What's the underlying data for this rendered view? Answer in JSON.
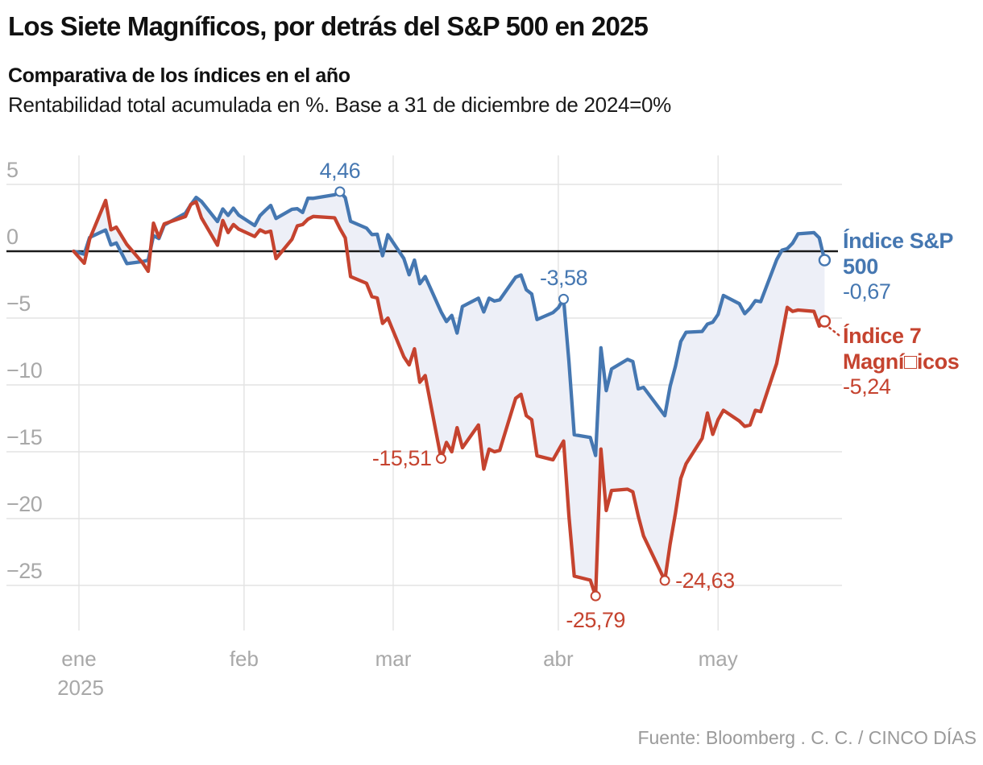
{
  "header": {
    "title": "Los Siete Magníficos, por detrás del S&P 500 en 2025",
    "subtitle": "Comparativa de los índices en el año",
    "description": "Rentabilidad total acumulada en %. Base a 31 de diciembre de 2024=0%"
  },
  "footer": {
    "source": "Fuente: Bloomberg . C. C. / CINCO DÍAS"
  },
  "chart_data": {
    "type": "line",
    "title": "Los Siete Magníficos, por detrás del S&P 500 en 2025",
    "subtitle": "Comparativa de los índices en el año",
    "note": "Rentabilidad total acumulada en %. Base a 31 de diciembre de 2024=0%",
    "x_unit": "day_of_year_2025 (0 = 31 dic 2024)",
    "xlim": [
      0,
      141
    ],
    "ylim": [
      -28.5,
      7.2
    ],
    "grid": true,
    "legend_position": "right-end",
    "colors": {
      "sp500_blue": "#4577b1",
      "mag7_red": "#c5432f",
      "fill_between": "#edeff7",
      "grid": "#e3e3e3",
      "zero_line": "#1a1a1a",
      "axis_text": "#a8a8a8",
      "footer_text": "#9a9a9a"
    },
    "x_ticks": [
      {
        "label": "ene",
        "sublabel": "2025",
        "doy": 1
      },
      {
        "label": "feb",
        "doy": 32
      },
      {
        "label": "mar",
        "doy": 60
      },
      {
        "label": "abr",
        "doy": 91
      },
      {
        "label": "may",
        "doy": 121
      }
    ],
    "y_ticks": [
      {
        "label": "5",
        "value": 5
      },
      {
        "label": "0",
        "value": 0
      },
      {
        "label": "−5",
        "value": -5
      },
      {
        "label": "−10",
        "value": -10
      },
      {
        "label": "−15",
        "value": -15
      },
      {
        "label": "−20",
        "value": -20
      },
      {
        "label": "−25",
        "value": -25
      }
    ],
    "series": [
      {
        "id": "sp500",
        "name": "Índice S&P 500",
        "color": "#4577b1",
        "end_value_label": "-0,67",
        "points": [
          [
            0,
            0
          ],
          [
            2,
            -0.22
          ],
          [
            3,
            1.03
          ],
          [
            6,
            1.59
          ],
          [
            7,
            0.47
          ],
          [
            8,
            0.62
          ],
          [
            10,
            -0.93
          ],
          [
            13,
            -0.77
          ],
          [
            14,
            -0.66
          ],
          [
            15,
            1.16
          ],
          [
            16,
            0.95
          ],
          [
            17,
            1.96
          ],
          [
            21,
            2.85
          ],
          [
            22,
            3.48
          ],
          [
            23,
            4.03
          ],
          [
            24,
            3.73
          ],
          [
            27,
            2.22
          ],
          [
            28,
            3.16
          ],
          [
            29,
            2.68
          ],
          [
            30,
            3.22
          ],
          [
            31,
            2.7
          ],
          [
            34,
            1.92
          ],
          [
            35,
            2.66
          ],
          [
            36,
            3.06
          ],
          [
            37,
            3.43
          ],
          [
            38,
            2.45
          ],
          [
            41,
            3.14
          ],
          [
            42,
            3.18
          ],
          [
            43,
            2.9
          ],
          [
            44,
            3.97
          ],
          [
            45,
            3.96
          ],
          [
            49,
            4.22
          ],
          [
            50,
            4.46
          ],
          [
            51,
            4.01
          ],
          [
            52,
            2.24
          ],
          [
            55,
            1.73
          ],
          [
            56,
            1.25
          ],
          [
            57,
            1.27
          ],
          [
            58,
            -0.34
          ],
          [
            59,
            1.24
          ],
          [
            62,
            -0.54
          ],
          [
            63,
            -1.76
          ],
          [
            64,
            -0.66
          ],
          [
            65,
            -2.43
          ],
          [
            66,
            -1.89
          ],
          [
            69,
            -4.54
          ],
          [
            70,
            -5.26
          ],
          [
            71,
            -4.8
          ],
          [
            72,
            -6.12
          ],
          [
            73,
            -4.13
          ],
          [
            76,
            -3.51
          ],
          [
            77,
            -4.54
          ],
          [
            78,
            -3.51
          ],
          [
            79,
            -3.72
          ],
          [
            80,
            -3.64
          ],
          [
            83,
            -1.94
          ],
          [
            84,
            -1.78
          ],
          [
            85,
            -2.88
          ],
          [
            86,
            -3.2
          ],
          [
            87,
            -5.11
          ],
          [
            90,
            -4.59
          ],
          [
            91,
            -4.23
          ],
          [
            92,
            -3.58
          ],
          [
            93,
            -8.25
          ],
          [
            94,
            -13.73
          ],
          [
            97,
            -13.93
          ],
          [
            98,
            -15.28
          ],
          [
            99,
            -7.22
          ],
          [
            100,
            -10.43
          ],
          [
            101,
            -8.81
          ],
          [
            104,
            -8.09
          ],
          [
            105,
            -8.25
          ],
          [
            106,
            -10.3
          ],
          [
            107,
            -10.18
          ],
          [
            111,
            -12.3
          ],
          [
            112,
            -10.1
          ],
          [
            113,
            -8.6
          ],
          [
            114,
            -6.75
          ],
          [
            115,
            -6.06
          ],
          [
            118,
            -6.0
          ],
          [
            119,
            -5.45
          ],
          [
            120,
            -5.31
          ],
          [
            121,
            -4.72
          ],
          [
            122,
            -3.31
          ],
          [
            125,
            -3.93
          ],
          [
            126,
            -4.67
          ],
          [
            127,
            -4.26
          ],
          [
            128,
            -3.7
          ],
          [
            129,
            -3.77
          ],
          [
            132,
            -0.64
          ],
          [
            133,
            0.08
          ],
          [
            134,
            0.19
          ],
          [
            135,
            0.6
          ],
          [
            136,
            1.3
          ],
          [
            139,
            1.39
          ],
          [
            140,
            1.0
          ],
          [
            141,
            -0.67
          ]
        ]
      },
      {
        "id": "mag7",
        "name": "Índice 7 Magní□icos",
        "color": "#c5432f",
        "end_value_label": "-5,24",
        "points": [
          [
            0,
            0
          ],
          [
            2,
            -0.9
          ],
          [
            3,
            0.9
          ],
          [
            6,
            3.8
          ],
          [
            7,
            1.6
          ],
          [
            8,
            1.8
          ],
          [
            10,
            0.5
          ],
          [
            13,
            -0.9
          ],
          [
            14,
            -1.5
          ],
          [
            15,
            2.1
          ],
          [
            16,
            1.05
          ],
          [
            17,
            2.05
          ],
          [
            21,
            2.6
          ],
          [
            22,
            3.5
          ],
          [
            23,
            3.7
          ],
          [
            24,
            2.5
          ],
          [
            27,
            0.45
          ],
          [
            28,
            2.3
          ],
          [
            29,
            1.4
          ],
          [
            30,
            2.0
          ],
          [
            31,
            1.65
          ],
          [
            34,
            1.1
          ],
          [
            35,
            1.6
          ],
          [
            36,
            1.4
          ],
          [
            37,
            1.5
          ],
          [
            38,
            -0.55
          ],
          [
            41,
            0.9
          ],
          [
            42,
            1.9
          ],
          [
            43,
            2.0
          ],
          [
            44,
            2.4
          ],
          [
            45,
            2.6
          ],
          [
            49,
            2.5
          ],
          [
            50,
            1.7
          ],
          [
            51,
            1.0
          ],
          [
            52,
            -1.9
          ],
          [
            55,
            -2.4
          ],
          [
            56,
            -3.4
          ],
          [
            57,
            -3.5
          ],
          [
            58,
            -5.4
          ],
          [
            59,
            -5.0
          ],
          [
            62,
            -7.9
          ],
          [
            63,
            -8.5
          ],
          [
            64,
            -7.3
          ],
          [
            65,
            -9.8
          ],
          [
            66,
            -9.3
          ],
          [
            69,
            -15.51
          ],
          [
            70,
            -14.3
          ],
          [
            71,
            -15.0
          ],
          [
            72,
            -13.2
          ],
          [
            73,
            -14.7
          ],
          [
            76,
            -13.0
          ],
          [
            77,
            -16.3
          ],
          [
            78,
            -14.8
          ],
          [
            79,
            -15.0
          ],
          [
            80,
            -14.9
          ],
          [
            83,
            -11.0
          ],
          [
            84,
            -10.7
          ],
          [
            85,
            -12.3
          ],
          [
            86,
            -12.6
          ],
          [
            87,
            -15.3
          ],
          [
            90,
            -15.6
          ],
          [
            91,
            -14.9
          ],
          [
            92,
            -14.2
          ],
          [
            93,
            -19.8
          ],
          [
            94,
            -24.3
          ],
          [
            97,
            -24.6
          ],
          [
            98,
            -25.79
          ],
          [
            99,
            -14.8
          ],
          [
            100,
            -19.4
          ],
          [
            101,
            -17.9
          ],
          [
            104,
            -17.8
          ],
          [
            105,
            -18.0
          ],
          [
            106,
            -19.8
          ],
          [
            107,
            -21.3
          ],
          [
            111,
            -24.63
          ],
          [
            112,
            -21.9
          ],
          [
            113,
            -19.6
          ],
          [
            114,
            -17.0
          ],
          [
            115,
            -15.9
          ],
          [
            118,
            -14.0
          ],
          [
            119,
            -12.1
          ],
          [
            120,
            -13.7
          ],
          [
            121,
            -12.6
          ],
          [
            122,
            -11.9
          ],
          [
            125,
            -12.7
          ],
          [
            126,
            -13.1
          ],
          [
            127,
            -13.0
          ],
          [
            128,
            -11.9
          ],
          [
            129,
            -12.0
          ],
          [
            132,
            -8.4
          ],
          [
            133,
            -6.3
          ],
          [
            134,
            -4.2
          ],
          [
            135,
            -4.5
          ],
          [
            136,
            -4.4
          ],
          [
            139,
            -4.5
          ],
          [
            140,
            -5.6
          ],
          [
            141,
            -5.24
          ]
        ]
      }
    ],
    "annotations": [
      {
        "series": "sp500",
        "label": "4,46",
        "doy": 50,
        "value": 4.46,
        "placement": "above"
      },
      {
        "series": "sp500",
        "label": "-3,58",
        "doy": 92,
        "value": -3.58,
        "placement": "above"
      },
      {
        "series": "mag7",
        "label": "-15,51",
        "doy": 69,
        "value": -15.51,
        "placement": "left"
      },
      {
        "series": "mag7",
        "label": "-25,79",
        "doy": 98,
        "value": -25.79,
        "placement": "below"
      },
      {
        "series": "mag7",
        "label": "-24,63",
        "doy": 111,
        "value": -24.63,
        "placement": "right"
      }
    ],
    "end_labels": [
      {
        "series": "sp500",
        "name": "Índice S&P 500",
        "value": "-0,67"
      },
      {
        "series": "mag7",
        "name": "Índice 7 Magní□icos",
        "value": "-5,24"
      }
    ]
  }
}
